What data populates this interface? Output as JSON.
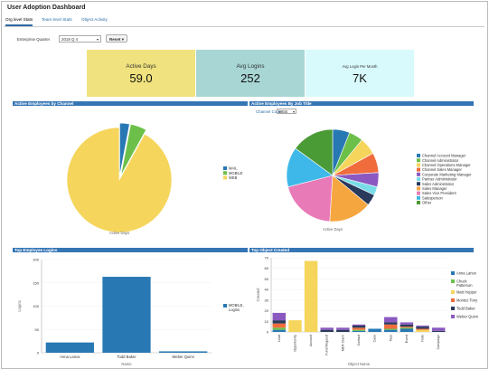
{
  "app": {
    "title": "User Adoption Dashboard"
  },
  "tabs": [
    "Org level Stats",
    "Team level Stats",
    "Object Activity"
  ],
  "filter": {
    "label": "Enterprise Quarter",
    "value": "2018 Q 4",
    "reset_label": "Reset"
  },
  "kpis": [
    {
      "label": "Active Days",
      "value": "59.0",
      "color": "#f0e27e"
    },
    {
      "label": "Avg Logins",
      "value": "252",
      "color": "#a8d6d5"
    },
    {
      "label": "Avg Login Per Month",
      "value": "7K",
      "color": "#d9fafc"
    }
  ],
  "sections": {
    "by_channel": "Active Employees by Channel",
    "by_job": "Active Employees By Job Title",
    "top_logins": "Top Employee Logins",
    "top_objects": "Top Object Created"
  },
  "channel_code": {
    "label": "Channel Code",
    "value": "WEB"
  },
  "colors": {
    "accent": "#3575b4"
  },
  "chart_data": [
    {
      "type": "pie",
      "title": "Active Employees by Channel",
      "caption": "Active Days",
      "slices": [
        {
          "label": "MAIL",
          "value": 3,
          "color": "#2878b4"
        },
        {
          "label": "MOBILE",
          "value": 5,
          "color": "#6cc04a"
        },
        {
          "label": "WEB",
          "value": 92,
          "color": "#f5d55c"
        }
      ],
      "legend": "right"
    },
    {
      "type": "pie",
      "title": "Active Employees By Job Title",
      "caption": "Active Days",
      "slices": [
        {
          "label": "Channel Account Manager",
          "value": 6,
          "color": "#2878b4"
        },
        {
          "label": "Channel Administrator",
          "value": 5,
          "color": "#6cc04a"
        },
        {
          "label": "Channel Operations Manager",
          "value": 6,
          "color": "#f5d55c"
        },
        {
          "label": "Channel Sales Manager",
          "value": 7,
          "color": "#f06c3c"
        },
        {
          "label": "Corporate Marketing Manager",
          "value": 5,
          "color": "#8a58c0"
        },
        {
          "label": "Partner Administrator",
          "value": 3,
          "color": "#77dce8"
        },
        {
          "label": "Sales Administrator",
          "value": 4,
          "color": "#2a3a5c"
        },
        {
          "label": "Sales Manager",
          "value": 15,
          "color": "#f6a63e"
        },
        {
          "label": "Sales Vice President",
          "value": 20,
          "color": "#e87ab8"
        },
        {
          "label": "Salesperson",
          "value": 14,
          "color": "#3eb8e8"
        },
        {
          "label": "Other",
          "value": 15,
          "color": "#4a9a36"
        }
      ],
      "legend": "right"
    },
    {
      "type": "bar",
      "title": "Top Employee Logins",
      "categories": [
        "Anna Lanox",
        "Todd Baker",
        "Weber Quinn"
      ],
      "series": [
        {
          "name": "MOBILE, Logins",
          "values": [
            22,
            163,
            3
          ],
          "color": "#2878b4"
        }
      ],
      "xlabel": "Name",
      "ylabel": "Logins",
      "ylim": [
        0,
        200
      ],
      "yticks": [
        0,
        50,
        100,
        150,
        200
      ],
      "legend": "right"
    },
    {
      "type": "bar",
      "stacked": true,
      "title": "Top Object Created",
      "categories": [
        "Lead",
        "Opportunity",
        "Account",
        "Fund Request",
        "MDF Claim",
        "Contact",
        "Case",
        "Task",
        "Event",
        "Note",
        "Campaign"
      ],
      "series": [
        {
          "name": "Anna Lanox",
          "values": [
            2,
            0,
            0,
            0,
            0,
            1,
            3,
            2,
            3,
            0,
            0
          ],
          "color": "#2878b4"
        },
        {
          "name": "Chuck Patterson",
          "values": [
            2,
            0,
            0,
            0,
            0,
            1,
            0,
            1,
            1,
            0,
            0
          ],
          "color": "#6cc04a"
        },
        {
          "name": "Matt Hopper",
          "values": [
            0,
            11,
            67,
            0,
            0,
            0,
            0,
            0,
            0,
            2,
            0
          ],
          "color": "#f5d55c"
        },
        {
          "name": "Montez Tony",
          "values": [
            4,
            0,
            0,
            0,
            0,
            2,
            0,
            4,
            1,
            1,
            0
          ],
          "color": "#f06c3c"
        },
        {
          "name": "Todd Baker",
          "values": [
            3,
            0,
            0,
            2,
            2,
            2,
            0,
            2,
            2,
            2,
            1
          ],
          "color": "#2a3a5c"
        },
        {
          "name": "Weber Quinn",
          "values": [
            7,
            0,
            0,
            2,
            2,
            1,
            0,
            5,
            2,
            1,
            3
          ],
          "color": "#8a58c0"
        }
      ],
      "xlabel": "Object Name",
      "ylabel": "Created",
      "ylim": [
        0,
        70
      ],
      "yticks": [
        0,
        10,
        20,
        30,
        40,
        50,
        60,
        70
      ],
      "legend": "right"
    }
  ]
}
